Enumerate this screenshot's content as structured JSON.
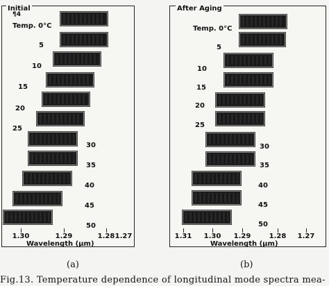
{
  "panels": [
    {
      "heading": "Initial",
      "temp_prefix": "Temp. 0°C",
      "stray_mark": "¶4",
      "temperatures": [
        "5",
        "10",
        "15",
        "20",
        "25",
        "30",
        "35",
        "40",
        "45",
        "50"
      ],
      "ticks": [
        "1.30",
        "1.29",
        "1.28",
        "1.27"
      ],
      "axis_label": "Wavelength (μm)",
      "sublabel": "(a)"
    },
    {
      "heading": "After Aging",
      "temp_prefix": "Temp. 0°C",
      "temperatures": [
        "5",
        "10",
        "15",
        "20",
        "25",
        "30",
        "35",
        "40",
        "45",
        "50"
      ],
      "ticks": [
        "1.31",
        "1.30",
        "1.29",
        "1.28",
        "1.27"
      ],
      "axis_label": "Wavelength (μm)",
      "sublabel": "(b)"
    }
  ],
  "caption": "Fig.13. Temperature dependence of longitudinal mode spectra mea-"
}
